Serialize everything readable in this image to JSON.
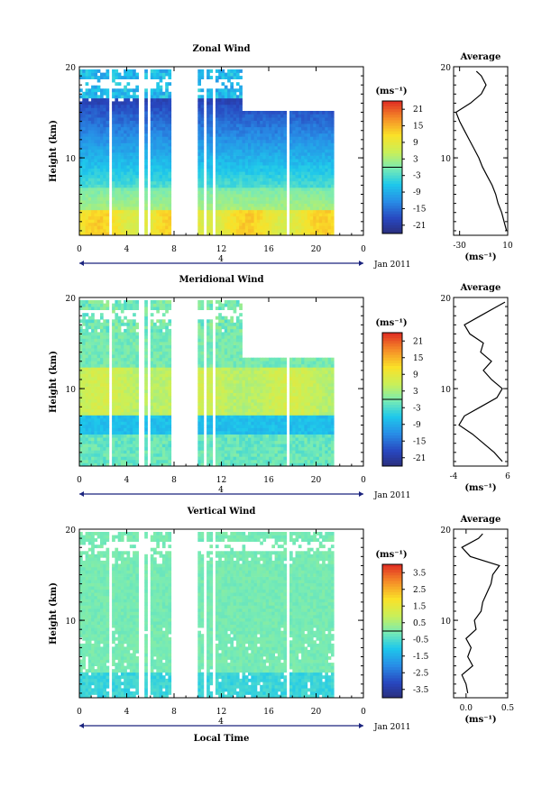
{
  "x_axis_label": "Local Time",
  "date_label": "Jan 2011",
  "day_marker": "4",
  "height_axis_label": "Height (km)",
  "side_title": "Average",
  "unit_label": "(ms⁻¹)",
  "chart_data": [
    {
      "type": "heatmap",
      "title": "Zonal Wind",
      "ylabel": "Height (km)",
      "xlabel": "",
      "x_ticks": [
        "0",
        "4",
        "8",
        "12",
        "16",
        "20",
        "0"
      ],
      "xlim": [
        0,
        24
      ],
      "y_ticks": [
        "20",
        "10"
      ],
      "ylim": [
        1.5,
        20
      ],
      "colorbar": {
        "label": "(ms⁻¹)",
        "ticks": [
          "21",
          "15",
          "9",
          "3",
          "-3",
          "-9",
          "-15",
          "-21"
        ],
        "range": [
          -24,
          24
        ]
      },
      "profile": {
        "title": "Average",
        "xlabel": "(ms⁻¹)",
        "x_ticks": [
          "-30",
          "10"
        ],
        "xlim": [
          -35,
          10
        ],
        "heights": [
          2,
          3,
          4,
          5,
          6,
          7,
          8,
          9,
          10,
          11,
          12,
          13,
          14,
          15,
          16,
          17,
          18,
          19,
          19.5
        ],
        "values": [
          9,
          7,
          5,
          2,
          0,
          -3,
          -7,
          -11,
          -14,
          -18,
          -22,
          -26,
          -30,
          -33,
          -21,
          -12,
          -8,
          -12,
          -16
        ]
      }
    },
    {
      "type": "heatmap",
      "title": "Meridional Wind",
      "ylabel": "Height (km)",
      "xlabel": "",
      "x_ticks": [
        "0",
        "4",
        "8",
        "12",
        "16",
        "20",
        "0"
      ],
      "xlim": [
        0,
        24
      ],
      "y_ticks": [
        "20",
        "10"
      ],
      "ylim": [
        1.5,
        20
      ],
      "colorbar": {
        "label": "(ms⁻¹)",
        "ticks": [
          "21",
          "15",
          "9",
          "3",
          "-3",
          "-9",
          "-15",
          "-21"
        ],
        "range": [
          -24,
          24
        ]
      },
      "profile": {
        "title": "Average",
        "xlabel": "(ms⁻¹)",
        "x_ticks": [
          "-4",
          "6"
        ],
        "xlim": [
          -4,
          6
        ],
        "heights": [
          2,
          3,
          4,
          5,
          6,
          7,
          8,
          9,
          10,
          11,
          12,
          13,
          14,
          15,
          16,
          17,
          18,
          19,
          19.5
        ],
        "values": [
          5,
          3.5,
          1.5,
          -0.5,
          -3,
          -2,
          1,
          4,
          5,
          3,
          1.5,
          3,
          1,
          1.5,
          -1,
          -2,
          1,
          4,
          5.5
        ]
      }
    },
    {
      "type": "heatmap",
      "title": "Vertical Wind",
      "ylabel": "Height (km)",
      "xlabel": "Local Time",
      "x_ticks": [
        "0",
        "4",
        "8",
        "12",
        "16",
        "20",
        "0"
      ],
      "xlim": [
        0,
        24
      ],
      "y_ticks": [
        "20",
        "10"
      ],
      "ylim": [
        1.5,
        20
      ],
      "colorbar": {
        "label": "(ms⁻¹)",
        "ticks": [
          "3.5",
          "2.5",
          "1.5",
          "0.5",
          "-0.5",
          "-1.5",
          "-2.5",
          "-3.5"
        ],
        "range": [
          -4,
          4
        ]
      },
      "profile": {
        "title": "Average",
        "xlabel": "(ms⁻¹)",
        "x_ticks": [
          "0.0",
          "0.5"
        ],
        "xlim": [
          -0.15,
          0.5
        ],
        "heights": [
          2,
          3,
          4,
          5,
          6,
          7,
          8,
          9,
          10,
          11,
          12,
          13,
          14,
          15,
          16,
          17,
          18,
          19,
          19.5
        ],
        "values": [
          0.02,
          0.0,
          -0.05,
          0.08,
          0.02,
          0.06,
          0.0,
          0.12,
          0.1,
          0.18,
          0.2,
          0.25,
          0.3,
          0.32,
          0.4,
          0.05,
          -0.05,
          0.15,
          0.2
        ]
      }
    }
  ]
}
